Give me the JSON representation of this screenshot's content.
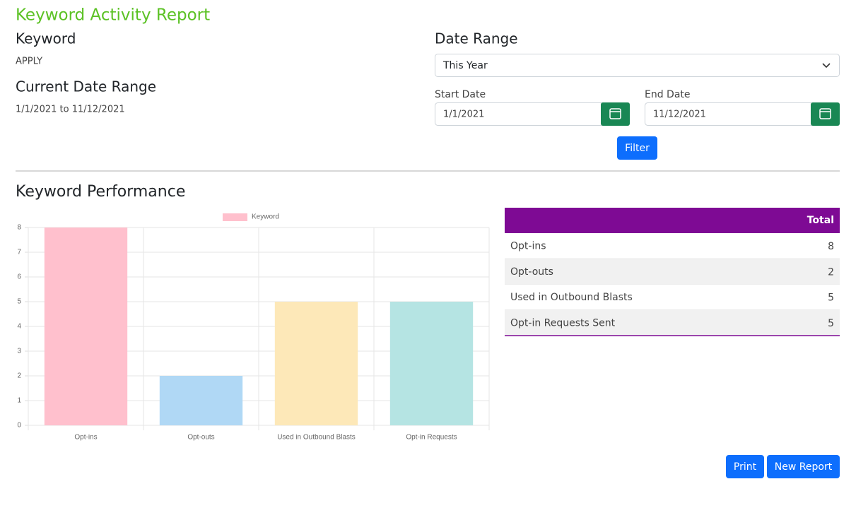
{
  "header": {
    "title": "Keyword Activity Report"
  },
  "keyword": {
    "label": "Keyword",
    "value": "APPLY"
  },
  "current_range": {
    "label": "Current Date Range",
    "value": "1/1/2021 to 11/12/2021"
  },
  "filters": {
    "date_range_label": "Date Range",
    "date_range_value": "This Year",
    "start_label": "Start Date",
    "start_value": "1/1/2021",
    "end_label": "End Date",
    "end_value": "11/12/2021",
    "button": "Filter"
  },
  "section_title": "Keyword Performance",
  "chart_data": {
    "type": "bar",
    "categories": [
      "Opt-ins",
      "Opt-outs",
      "Used in Outbound Blasts",
      "Opt-in Requests"
    ],
    "series": [
      {
        "name": "Keyword",
        "color": "#ffc0cd",
        "values": [
          8,
          2,
          5,
          5
        ]
      }
    ],
    "colors": [
      "#ffc0cd",
      "#b0d8f5",
      "#fde8b8",
      "#b5e4e3"
    ],
    "ylim": [
      0,
      8
    ],
    "yticks": [
      0,
      1,
      2,
      3,
      4,
      5,
      6,
      7,
      8
    ],
    "grid": true,
    "legend": "top"
  },
  "table": {
    "header": "Total",
    "rows": [
      [
        "Opt-ins",
        8
      ],
      [
        "Opt-outs",
        2
      ],
      [
        "Used in Outbound Blasts",
        5
      ],
      [
        "Opt-in Requests Sent",
        5
      ]
    ]
  },
  "buttons": [
    "Print",
    "New Report"
  ]
}
